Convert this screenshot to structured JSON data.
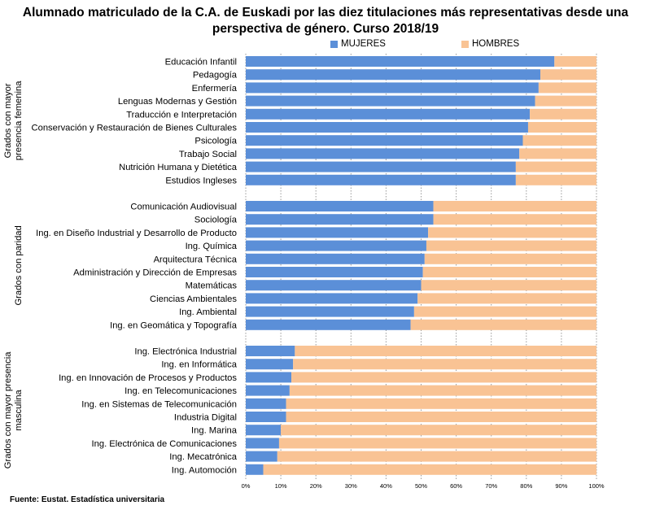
{
  "chart_data": {
    "type": "bar",
    "orientation": "horizontal",
    "stacked": "percent",
    "title_line1": "Alumnado matriculado de la C.A. de Euskadi por las diez titulaciones más representativas desde una",
    "title_line2": "perspectiva de género. Curso 2018/19",
    "legend": [
      {
        "name": "MUJERES",
        "color": "#5b8fd8"
      },
      {
        "name": "HOMBRES",
        "color": "#f9c394"
      }
    ],
    "legend_position": "top",
    "xlim": [
      0,
      100
    ],
    "xticks": [
      "0%",
      "10%",
      "20%",
      "30%",
      "40%",
      "50%",
      "60%",
      "70%",
      "80%",
      "90%",
      "100%"
    ],
    "grid": "vertical dotted",
    "groups": [
      {
        "label_lines": [
          "Grados con mayor",
          "presencia femenina"
        ],
        "categories": [
          "Educación Infantil",
          "Pedagogía",
          "Enfermería",
          "Lenguas Modernas y Gestión",
          "Traducción e Interpretación",
          "Conservación y Restauración de Bienes Culturales",
          "Psicología",
          "Trabajo Social",
          "Nutrición Humana y Dietética",
          "Estudios Ingleses"
        ],
        "mujeres": [
          88,
          84,
          83.5,
          82.5,
          81,
          80.5,
          79,
          78,
          77,
          77
        ]
      },
      {
        "label_lines": [
          "Grados con paridad"
        ],
        "categories": [
          "Comunicación Audiovisual",
          "Sociología",
          "Ing. en Diseño Industrial y Desarrollo de Producto",
          "Ing. Química",
          "Arquitectura Técnica",
          "Administración y Dirección de Empresas",
          "Matemáticas",
          "Ciencias Ambientales",
          "Ing. Ambiental",
          "Ing. en Geomática y Topografía"
        ],
        "mujeres": [
          53.5,
          53.5,
          52,
          51.5,
          51,
          50.5,
          50,
          49,
          48,
          47
        ]
      },
      {
        "label_lines": [
          "Grados con mayor presencia",
          "masculina"
        ],
        "categories": [
          "Ing. Electrónica Industrial",
          "Ing. en Informática",
          "Ing. en Innovación de Procesos y Productos",
          "Ing. en Telecomunicaciones",
          "Ing. en Sistemas de Telecomunicación",
          "Industria Digital",
          "Ing. Marina",
          "Ing. Electrónica de Comunicaciones",
          "Ing. Mecatrónica",
          "Ing. Automoción"
        ],
        "mujeres": [
          14,
          13.5,
          13,
          12.5,
          11.5,
          11.5,
          10,
          9.5,
          9,
          5
        ]
      }
    ]
  },
  "footer": "Fuente: Eustat. Estadística universitaria"
}
